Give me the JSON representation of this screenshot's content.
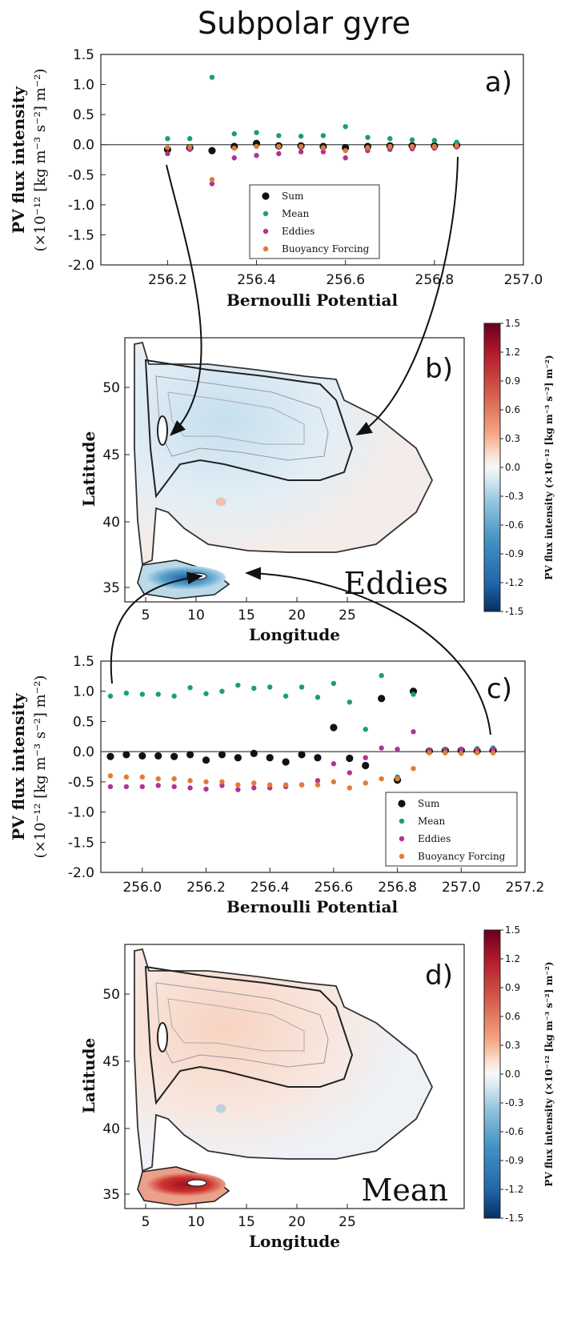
{
  "figure_title": "Subpolar gyre",
  "colors": {
    "sum": "#111111",
    "mean": "#1b9e77",
    "eddies": "#b1348f",
    "buoyancy": "#e07b39"
  },
  "chart_data": [
    {
      "type": "scatter",
      "panel_label": "a)",
      "xlabel": "Bernoulli Potential",
      "ylabel": "PV flux intensity",
      "ylabel_units": "(×10⁻¹² [kg m⁻³ s⁻²] m⁻²)",
      "xlim": [
        256.05,
        257.0
      ],
      "ylim": [
        -2.0,
        1.5
      ],
      "xticks": [
        "256.2",
        "256.4",
        "256.6",
        "256.8",
        "257.0"
      ],
      "yticks": [
        "1.5",
        "1.0",
        "0.5",
        "0.0",
        "-0.5",
        "-1.0",
        "-1.5",
        "-2.0"
      ],
      "legend_position": "lower-center",
      "x": [
        256.2,
        256.25,
        256.3,
        256.35,
        256.4,
        256.45,
        256.5,
        256.55,
        256.6,
        256.65,
        256.7,
        256.75,
        256.8,
        256.85
      ],
      "series": [
        {
          "name": "Sum",
          "values": [
            -0.08,
            -0.05,
            -0.1,
            -0.03,
            0.02,
            -0.02,
            -0.02,
            -0.03,
            -0.05,
            -0.03,
            -0.02,
            -0.02,
            -0.02,
            -0.01
          ]
        },
        {
          "name": "Mean",
          "values": [
            0.1,
            0.1,
            1.12,
            0.18,
            0.2,
            0.15,
            0.14,
            0.15,
            0.3,
            0.12,
            0.1,
            0.08,
            0.07,
            0.04
          ]
        },
        {
          "name": "Eddies",
          "values": [
            -0.15,
            -0.08,
            -0.65,
            -0.22,
            -0.18,
            -0.15,
            -0.12,
            -0.12,
            -0.22,
            -0.1,
            -0.08,
            -0.07,
            -0.06,
            -0.04
          ]
        },
        {
          "name": "Buoyancy Forcing",
          "values": [
            -0.05,
            -0.04,
            -0.58,
            -0.06,
            -0.03,
            -0.03,
            -0.03,
            -0.05,
            -0.1,
            -0.05,
            -0.03,
            -0.03,
            -0.03,
            -0.02
          ]
        }
      ]
    },
    {
      "type": "heatmap",
      "panel_label": "b)",
      "name": "Eddies",
      "xlabel": "Longitude",
      "ylabel": "Latitude",
      "xticks": [
        "5",
        "10",
        "15",
        "20",
        "25"
      ],
      "yticks": [
        "50",
        "45",
        "40",
        "35"
      ],
      "colorbar_label": "PV flux intensity (×10⁻¹² [kg m⁻³ s⁻²] m⁻²)",
      "colorbar_ticks": [
        "1.5",
        "1.2",
        "0.9",
        "0.6",
        "0.3",
        "0.0",
        "-0.3",
        "-0.6",
        "-0.9",
        "-1.2",
        "-1.5"
      ],
      "clim": [
        -1.5,
        1.5
      ]
    },
    {
      "type": "scatter",
      "panel_label": "c)",
      "xlabel": "Bernoulli Potential",
      "ylabel": "PV flux intensity",
      "ylabel_units": "(×10⁻¹² [kg m⁻³ s⁻²] m⁻²)",
      "xlim": [
        255.87,
        257.2
      ],
      "ylim": [
        -2.0,
        1.5
      ],
      "xticks": [
        "256.0",
        "256.2",
        "256.4",
        "256.6",
        "256.8",
        "257.0",
        "257.2"
      ],
      "yticks": [
        "1.5",
        "1.0",
        "0.5",
        "0.0",
        "-0.5",
        "-1.0",
        "-1.5",
        "-2.0"
      ],
      "legend_position": "lower-right",
      "x": [
        255.9,
        255.95,
        256.0,
        256.05,
        256.1,
        256.15,
        256.2,
        256.25,
        256.3,
        256.35,
        256.4,
        256.45,
        256.5,
        256.55,
        256.6,
        256.65,
        256.7,
        256.75,
        256.8,
        256.85,
        256.9,
        256.95,
        257.0,
        257.05,
        257.1
      ],
      "series": [
        {
          "name": "Sum",
          "values": [
            -0.08,
            -0.05,
            -0.07,
            -0.07,
            -0.08,
            -0.05,
            -0.14,
            -0.05,
            -0.1,
            -0.03,
            -0.1,
            -0.17,
            -0.05,
            -0.1,
            0.4,
            -0.11,
            -0.23,
            0.88,
            -0.47,
            1.0,
            0.01,
            0.02,
            0.02,
            0.01,
            0.02
          ]
        },
        {
          "name": "Mean",
          "values": [
            0.92,
            0.97,
            0.95,
            0.95,
            0.92,
            1.06,
            0.96,
            1.0,
            1.1,
            1.05,
            1.07,
            0.92,
            1.07,
            0.9,
            1.13,
            0.82,
            0.37,
            1.26,
            -0.42,
            0.95,
            0.03,
            0.04,
            0.04,
            0.05,
            0.06
          ]
        },
        {
          "name": "Eddies",
          "values": [
            -0.58,
            -0.58,
            -0.58,
            -0.56,
            -0.58,
            -0.6,
            -0.62,
            -0.56,
            -0.63,
            -0.6,
            -0.6,
            -0.58,
            -0.55,
            -0.48,
            -0.2,
            -0.35,
            -0.1,
            0.06,
            0.04,
            0.33,
            0.02,
            0.02,
            0.03,
            0.03,
            0.04
          ]
        },
        {
          "name": "Buoyancy Forcing",
          "values": [
            -0.4,
            -0.42,
            -0.42,
            -0.45,
            -0.45,
            -0.48,
            -0.5,
            -0.5,
            -0.55,
            -0.52,
            -0.55,
            -0.55,
            -0.55,
            -0.55,
            -0.5,
            -0.6,
            -0.52,
            -0.45,
            -0.45,
            -0.28,
            -0.02,
            -0.02,
            -0.03,
            -0.02,
            -0.02
          ]
        }
      ]
    },
    {
      "type": "heatmap",
      "panel_label": "d)",
      "name": "Mean",
      "xlabel": "Longitude",
      "ylabel": "Latitude",
      "xticks": [
        "5",
        "10",
        "15",
        "20",
        "25"
      ],
      "yticks": [
        "50",
        "45",
        "40",
        "35"
      ],
      "colorbar_label": "PV flux intensity (×10⁻¹² [kg m⁻³ s⁻²] m⁻²)",
      "colorbar_ticks": [
        "1.5",
        "1.2",
        "0.9",
        "0.6",
        "0.3",
        "0.0",
        "-0.3",
        "-0.6",
        "-0.9",
        "-1.2",
        "-1.5"
      ],
      "clim": [
        -1.5,
        1.5
      ]
    }
  ]
}
